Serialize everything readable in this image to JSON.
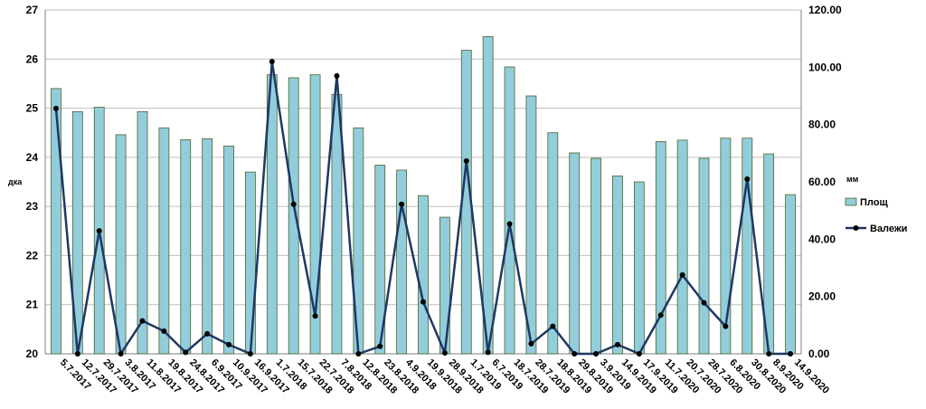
{
  "chart_data": {
    "type": "bar",
    "categories": [
      "5.7.2017",
      "12.7.2017",
      "29.7.2017",
      "3.8.2017",
      "11.8.2017",
      "19.8.2017",
      "24.8.2017",
      "6.9.2017",
      "10.9.2017",
      "16.9.2017",
      "1.7.2018",
      "15.7.2018",
      "22.7.2018",
      "7.8.2018",
      "12.8.2018",
      "23.8.2018",
      "4.9.2018",
      "19.9.2018",
      "28.9.2018",
      "1.7.2019",
      "6.7.2019",
      "18.7.2019",
      "28.7.2019",
      "18.8.2019",
      "29.8.2019",
      "3.9.2019",
      "14.9.2019",
      "17.9.2019",
      "11.7.2020",
      "20.7.2020",
      "28.7.2020",
      "6.8.2020",
      "30.8.2020",
      "8.9.2020",
      "14.9.2020"
    ],
    "series": [
      {
        "name": "Площ",
        "type": "bar",
        "axis": "left",
        "color": "#92CDDC",
        "border_color": "#4F6228",
        "values": [
          25.4,
          24.93,
          25.02,
          24.46,
          24.93,
          24.6,
          24.36,
          24.38,
          24.23,
          23.7,
          25.68,
          25.62,
          25.68,
          25.28,
          24.6,
          23.84,
          23.74,
          23.22,
          22.78,
          26.18,
          26.46,
          25.84,
          25.25,
          24.5,
          24.09,
          23.98,
          23.62,
          23.5,
          24.32,
          24.35,
          23.98,
          24.39,
          24.39,
          24.07,
          23.24
        ]
      },
      {
        "name": "Валежи",
        "type": "line",
        "axis": "right",
        "color": "#1F3864",
        "values": [
          85.6,
          0,
          42.9,
          0,
          11.5,
          7.9,
          0.5,
          7,
          3.2,
          0,
          102,
          52.2,
          13.2,
          97,
          0,
          2.6,
          52.2,
          18.1,
          0.3,
          67.3,
          0.5,
          45.3,
          3.5,
          9.6,
          0,
          0,
          3.2,
          0,
          13.5,
          27.5,
          17.8,
          9.6,
          61,
          0,
          0
        ]
      }
    ],
    "left_axis": {
      "label": "дка",
      "min": 20,
      "max": 27,
      "step": 1,
      "ticks": [
        "20",
        "21",
        "22",
        "23",
        "24",
        "25",
        "26",
        "27"
      ]
    },
    "right_axis": {
      "label": "мм",
      "min": 0,
      "max": 120,
      "step": 20,
      "ticks": [
        "0.00",
        "20.00",
        "40.00",
        "60.00",
        "80.00",
        "100.00",
        "120.00"
      ]
    },
    "grid": "horizontal",
    "legend_position": "right",
    "title": ""
  }
}
